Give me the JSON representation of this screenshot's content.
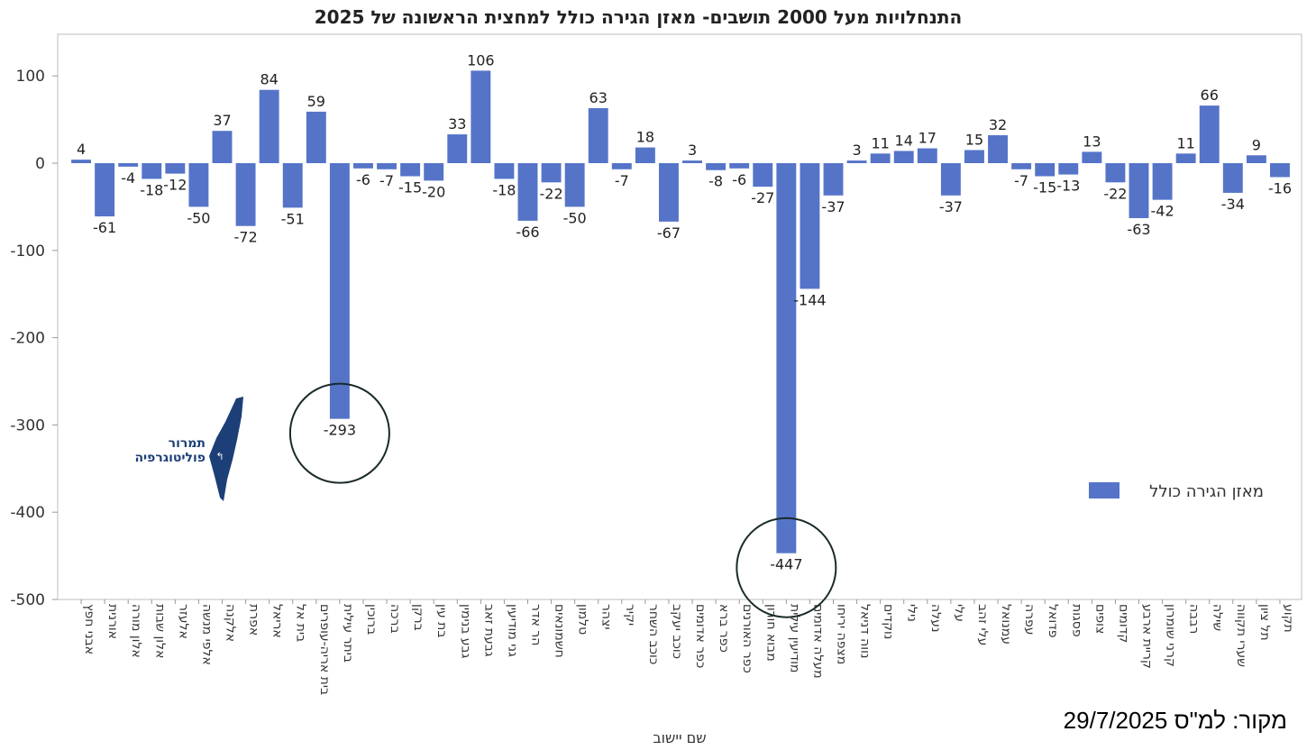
{
  "chart_data": {
    "type": "bar",
    "title": "התנחלויות מעל 2000 תושבים- מאזן הגירה כולל למחצית הראשונה של 2025",
    "xlabel": "שם יישוב",
    "ylabel": "",
    "ylim": [
      -500,
      140
    ],
    "yticks": [
      100,
      0,
      -100,
      -200,
      -300,
      -400,
      -500
    ],
    "grid": false,
    "legend_position": "right",
    "colors": {
      "bar": "#5574c8",
      "circle": "#1a2a2a",
      "logo": "#1c3f77"
    },
    "categories": [
      "אבני חפץ",
      "אורנית",
      "אלון מורה",
      "אלון שבות",
      "אלעזר",
      "אלפי מנשה",
      "אלקנה",
      "אפרת",
      "אריאל",
      "בית אל",
      "בית אריה-עופרים",
      "ביתר עילית",
      "ברוכין",
      "ברכה",
      "ברקן",
      "בת עין",
      "גבע בנימין",
      "גבעת זאב",
      "גני מודיעין",
      "הר אדר",
      "חשמונאים",
      "טלמון",
      "יצהר",
      "יקיר",
      "כוכב השחר",
      "כוכב יעקב",
      "כפר אדומים",
      "כפר ברא",
      "כפר האורנים",
      "מבוא חורון",
      "מודיעין עילית",
      "מעלה אדומים",
      "מצפה יריחו",
      "נווה דניאל",
      "נוקדים",
      "נילי",
      "נעלה",
      "עלי",
      "עלי זהב",
      "עמנואל",
      "עפרה",
      "פדואל",
      "פסגות",
      "צופים",
      "קדומים",
      "קריית ארבע",
      "קרני שומרון",
      "רבבה",
      "שילה",
      "שערי תקווה",
      "תל ציון",
      "תקוע"
    ],
    "series": [
      {
        "name": "מאזן הגירה כולל",
        "values": [
          4,
          -61,
          -4,
          -18,
          -12,
          -50,
          37,
          -72,
          84,
          -51,
          59,
          -293,
          -6,
          -7,
          -15,
          -20,
          33,
          106,
          -18,
          -66,
          -22,
          -50,
          63,
          -7,
          18,
          -67,
          3,
          -8,
          -6,
          -27,
          -447,
          -144,
          -37,
          3,
          11,
          14,
          17,
          -37,
          15,
          32,
          -7,
          -15,
          -13,
          13,
          -22,
          -63,
          -42,
          11,
          66,
          -34,
          9,
          -16
        ]
      }
    ],
    "highlighted": [
      "ביתר עילית",
      "מודיעין עילית"
    ]
  },
  "logo": {
    "line1": "תמרור",
    "line2": "פוליטוגרפיה"
  },
  "source": "מקור: למ\"ס 29/7/2025"
}
